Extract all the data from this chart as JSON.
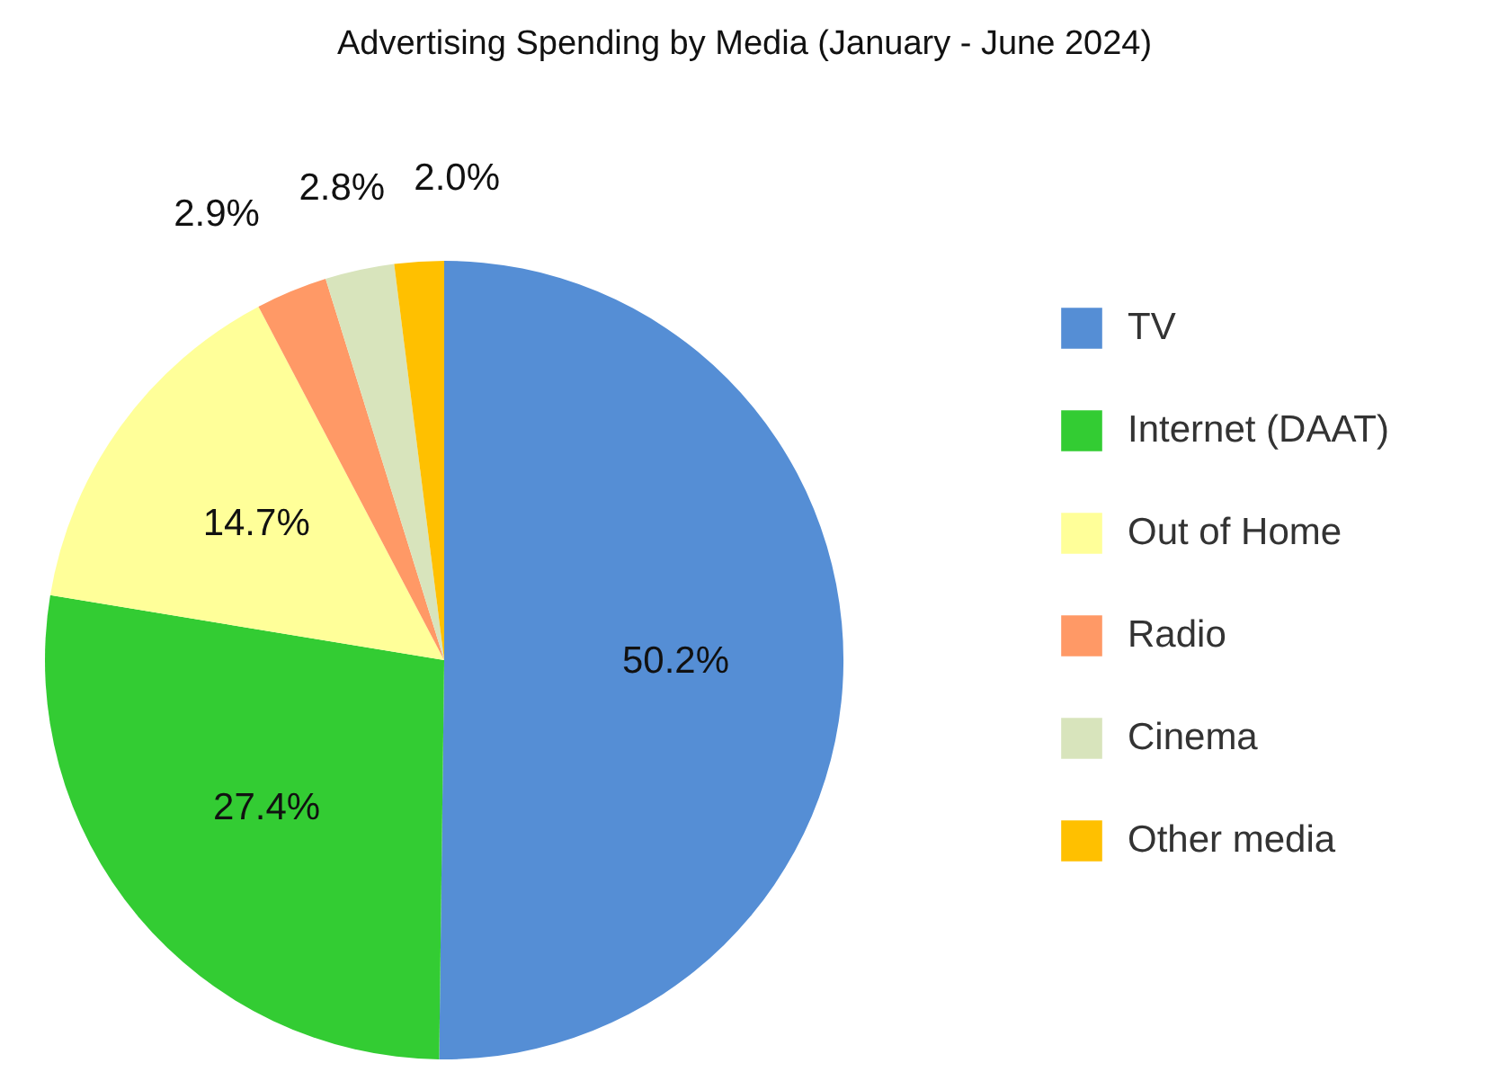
{
  "chart_data": {
    "type": "pie",
    "title": "Advertising Spending by Media (January - June 2024)",
    "categories": [
      "TV",
      "Internet (DAAT)",
      "Out of Home",
      "Radio",
      "Cinema",
      "Other media"
    ],
    "values": [
      50.2,
      27.4,
      14.7,
      2.9,
      2.8,
      2.0
    ],
    "colors": [
      "#558ed5",
      "#33cc33",
      "#ffff99",
      "#ff9966",
      "#d8e4bc",
      "#ffc000"
    ],
    "value_labels": [
      "50.2%",
      "27.4%",
      "14.7%",
      "2.9%",
      "2.8%",
      "2.0%"
    ],
    "legend": "right"
  }
}
